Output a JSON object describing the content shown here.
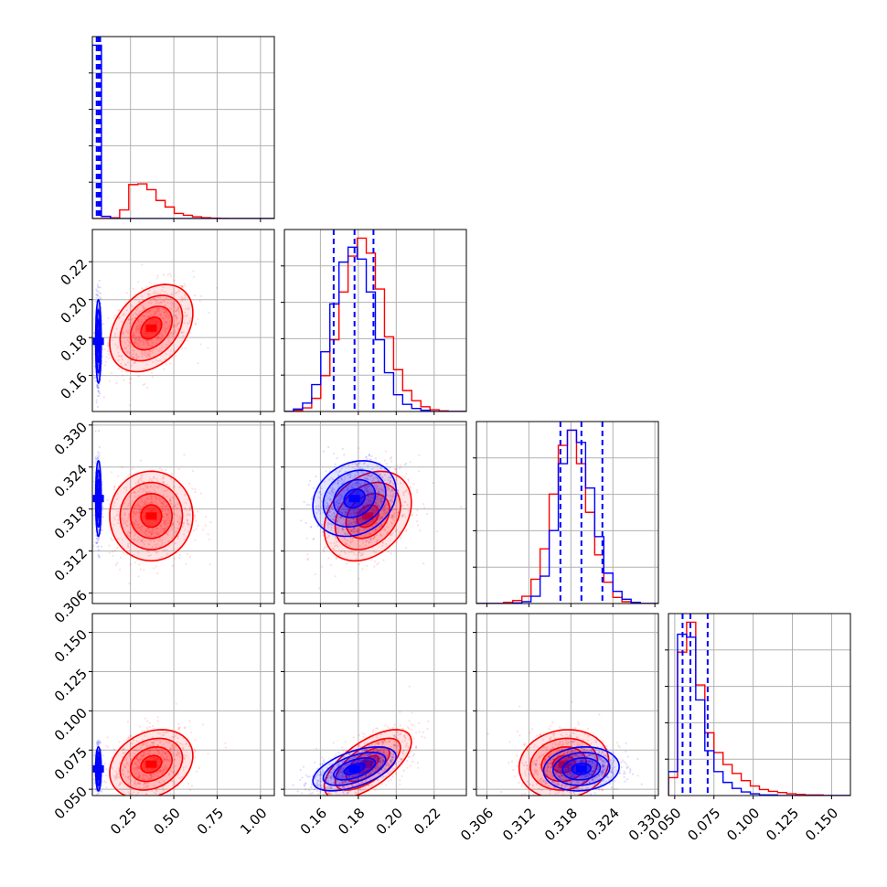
{
  "colors": {
    "red": "#ff0000",
    "blue": "#0000ff",
    "grid": "#b0b0b0",
    "frame": "#000000"
  },
  "chart_data": {
    "type": "corner",
    "title": "",
    "grid": true,
    "legend": "none",
    "parameters": [
      {
        "ticks": [
          0.25,
          0.5,
          0.75,
          1.0
        ],
        "tick_labels": [
          "0.25",
          "0.50",
          "0.75",
          "1.00"
        ],
        "range": [
          0.03,
          1.08
        ]
      },
      {
        "ticks": [
          0.16,
          0.18,
          0.2,
          0.22
        ],
        "tick_labels": [
          "0.16",
          "0.18",
          "0.20",
          "0.22"
        ],
        "range": [
          0.141,
          0.237
        ]
      },
      {
        "ticks": [
          0.306,
          0.312,
          0.318,
          0.324,
          0.33
        ],
        "tick_labels": [
          "0.306",
          "0.312",
          "0.318",
          "0.324",
          "0.330"
        ],
        "range": [
          0.3045,
          0.3305
        ]
      },
      {
        "ticks": [
          0.05,
          0.075,
          0.1,
          0.125,
          0.15
        ],
        "tick_labels": [
          "0.050",
          "0.075",
          "0.100",
          "0.125",
          "0.150"
        ],
        "range": [
          0.046,
          0.162
        ]
      }
    ],
    "series": [
      {
        "color": "#ff0000",
        "means": [
          0.37,
          0.185,
          0.317,
          0.066
        ],
        "sigmas": [
          0.12,
          0.0115,
          0.0032,
          0.011
        ],
        "correlations": {
          "0-1": 0.35,
          "0-2": 0.0,
          "0-3": 0.25,
          "1-2": 0.3,
          "1-3": 0.65,
          "2-3": 0.1
        },
        "histograms": [
          {
            "edges": [
              0.03,
              0.0825,
              0.135,
              0.1875,
              0.24,
              0.2925,
              0.345,
              0.3975,
              0.45,
              0.5025,
              0.555,
              0.6075,
              0.66,
              0.7125,
              0.765,
              0.8175,
              0.87,
              0.9225,
              0.975,
              1.0275,
              1.08
            ],
            "counts": [
              0,
              3,
              10,
              120,
              470,
              480,
              400,
              250,
              160,
              70,
              45,
              25,
              12,
              5,
              3,
              1,
              1,
              0,
              0,
              0
            ]
          },
          {
            "edges": [
              0.141,
              0.1458,
              0.1506,
              0.1554,
              0.1602,
              0.165,
              0.1698,
              0.1746,
              0.1794,
              0.1842,
              0.189,
              0.1938,
              0.1986,
              0.2034,
              0.2082,
              0.213,
              0.2178,
              0.2226,
              0.2274,
              0.2322,
              0.237
            ],
            "counts": [
              0,
              2,
              6,
              22,
              60,
              120,
              200,
              260,
              290,
              265,
              205,
              125,
              70,
              35,
              18,
              8,
              3,
              1,
              0,
              0
            ]
          },
          {
            "edges": [
              0.3045,
              0.3058,
              0.3071,
              0.3084,
              0.3097,
              0.311,
              0.3123,
              0.3136,
              0.3149,
              0.3162,
              0.3175,
              0.3188,
              0.3201,
              0.3214,
              0.3227,
              0.324,
              0.3253,
              0.3266,
              0.3279,
              0.3292,
              0.3305
            ],
            "counts": [
              0,
              0,
              0,
              2,
              5,
              12,
              40,
              90,
              180,
              260,
              285,
              230,
              150,
              80,
              35,
              10,
              3,
              1,
              0,
              0
            ]
          },
          {
            "edges": [
              0.046,
              0.0518,
              0.0576,
              0.0634,
              0.0692,
              0.075,
              0.0808,
              0.0866,
              0.0924,
              0.0982,
              0.104,
              0.1098,
              0.1156,
              0.1214,
              0.1272,
              0.133,
              0.1388,
              0.1446,
              0.1504,
              0.1562,
              0.162
            ],
            "counts": [
              30,
              240,
              290,
              185,
              105,
              72,
              52,
              37,
              25,
              16,
              10,
              7,
              5,
              3,
              2,
              1,
              1,
              0,
              0,
              0
            ]
          }
        ]
      },
      {
        "color": "#0000ff",
        "means": [
          0.065,
          0.178,
          0.3195,
          0.063
        ],
        "sigmas": [
          0.008,
          0.011,
          0.0027,
          0.007
        ],
        "quantiles": [
          [
            0.055,
            0.065,
            0.075
          ],
          [
            0.167,
            0.178,
            0.188
          ],
          [
            0.3165,
            0.3195,
            0.3225
          ],
          [
            0.055,
            0.06,
            0.071
          ]
        ],
        "correlations": {
          "0-1": 0.0,
          "0-2": 0.0,
          "0-3": 0.0,
          "1-2": 0.2,
          "1-3": 0.55,
          "2-3": 0.1
        },
        "histograms": [
          {
            "edges": [
              0.03,
              0.0825,
              0.135,
              0.1875,
              0.24,
              0.2925,
              0.345,
              0.3975,
              0.45,
              0.5025,
              0.555,
              0.6075,
              0.66,
              0.7125,
              0.765,
              0.8175,
              0.87,
              0.9225,
              0.975,
              1.0275,
              1.08
            ],
            "counts": [
              2400,
              30,
              0,
              0,
              0,
              0,
              0,
              0,
              0,
              0,
              0,
              0,
              0,
              0,
              0,
              0,
              0,
              0,
              0,
              0
            ]
          },
          {
            "edges": [
              0.141,
              0.1458,
              0.1506,
              0.1554,
              0.1602,
              0.165,
              0.1698,
              0.1746,
              0.1794,
              0.1842,
              0.189,
              0.1938,
              0.1986,
              0.2034,
              0.2082,
              0.213,
              0.2178,
              0.2226,
              0.2274,
              0.2322,
              0.237
            ],
            "counts": [
              0,
              4,
              14,
              45,
              100,
              180,
              250,
              275,
              255,
              200,
              120,
              65,
              28,
              12,
              5,
              2,
              0,
              0,
              0,
              0
            ]
          },
          {
            "edges": [
              0.3045,
              0.3058,
              0.3071,
              0.3084,
              0.3097,
              0.311,
              0.3123,
              0.3136,
              0.3149,
              0.3162,
              0.3175,
              0.3188,
              0.3201,
              0.3214,
              0.3227,
              0.324,
              0.3253,
              0.3266,
              0.3279,
              0.3292,
              0.3305
            ],
            "counts": [
              0,
              0,
              0,
              0,
              1,
              3,
              12,
              45,
              120,
              230,
              285,
              265,
              190,
              110,
              50,
              20,
              7,
              2,
              0,
              0
            ]
          },
          {
            "edges": [
              0.046,
              0.0518,
              0.0576,
              0.0634,
              0.0692,
              0.075,
              0.0808,
              0.0866,
              0.0924,
              0.0982,
              0.104,
              0.1098,
              0.1156,
              0.1214,
              0.1272,
              0.133,
              0.1388,
              0.1446,
              0.1504,
              0.1562,
              0.162
            ],
            "counts": [
              40,
              270,
              265,
              160,
              75,
              40,
              22,
              12,
              6,
              3,
              1,
              1,
              0,
              0,
              0,
              0,
              0,
              0,
              0,
              0
            ]
          }
        ]
      }
    ]
  }
}
